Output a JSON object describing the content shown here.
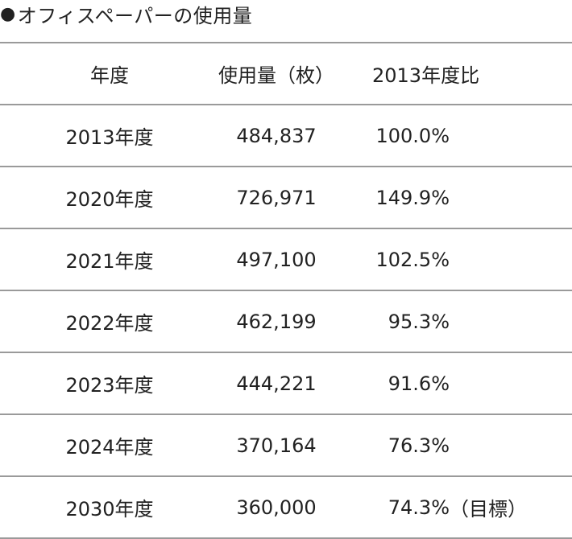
{
  "title": {
    "bullet": "●",
    "text": "オフィスペーパーの使用量"
  },
  "table": {
    "headers": {
      "year": "年度",
      "usage": "使用量（枚）",
      "ratio": "2013年度比"
    },
    "rows": [
      {
        "year": "2013年度",
        "usage": "484,837",
        "ratio": "100.0%",
        "note": ""
      },
      {
        "year": "2020年度",
        "usage": "726,971",
        "ratio": "149.9%",
        "note": ""
      },
      {
        "year": "2021年度",
        "usage": "497,100",
        "ratio": "102.5%",
        "note": ""
      },
      {
        "year": "2022年度",
        "usage": "462,199",
        "ratio": "95.3%",
        "note": ""
      },
      {
        "year": "2023年度",
        "usage": "444,221",
        "ratio": "91.6%",
        "note": ""
      },
      {
        "year": "2024年度",
        "usage": "370,164",
        "ratio": "76.3%",
        "note": ""
      },
      {
        "year": "2030年度",
        "usage": "360,000",
        "ratio": "74.3%",
        "note": "（目標）"
      }
    ]
  }
}
